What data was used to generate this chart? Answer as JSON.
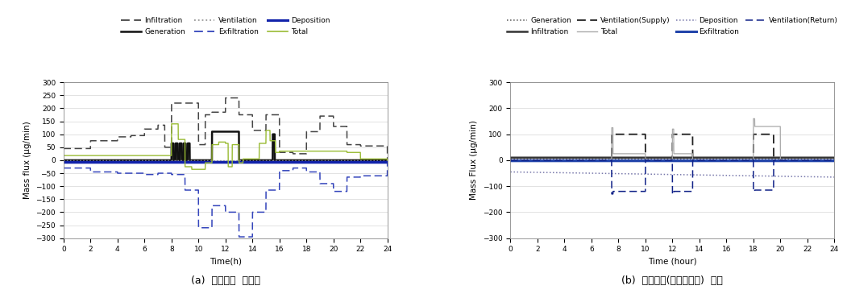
{
  "fig_width": 10.51,
  "fig_height": 3.65,
  "subtitle_a": "(a)  회피기술  미가동",
  "subtitle_b": "(b)  회피기술(전열교환기)  가동",
  "plot_a": {
    "ylabel": "Mass flux (μg/min)",
    "xlabel": "Time(h)",
    "xlim": [
      0,
      24
    ],
    "ylim": [
      -300,
      300
    ],
    "yticks": [
      -300,
      -250,
      -200,
      -150,
      -100,
      -50,
      0,
      50,
      100,
      150,
      200,
      250,
      300
    ],
    "xticks": [
      0,
      2,
      4,
      6,
      8,
      10,
      12,
      14,
      16,
      18,
      20,
      22,
      24
    ],
    "colors": {
      "Infiltration": "#444444",
      "Generation": "#111111",
      "Ventilation": "#999999",
      "Exfiltration": "#3344bb",
      "Deposition": "#1122aa",
      "Total": "#99bb33"
    }
  },
  "plot_b": {
    "ylabel": "Mass Flux (μg/min)",
    "xlabel": "Time (hour)",
    "xlim": [
      0,
      24
    ],
    "ylim": [
      -300,
      300
    ],
    "yticks": [
      -300,
      -200,
      -100,
      0,
      100,
      200,
      300
    ],
    "xticks": [
      0,
      2,
      4,
      6,
      8,
      10,
      12,
      14,
      16,
      18,
      20,
      22,
      24
    ],
    "colors": {
      "Generation": "#555555",
      "Infiltration": "#333333",
      "Ventilation(Supply)": "#222222",
      "Total": "#aaaaaa",
      "Deposition": "#7777aa",
      "Exfiltration": "#2244aa",
      "Ventilation(Return)": "#112288"
    }
  }
}
